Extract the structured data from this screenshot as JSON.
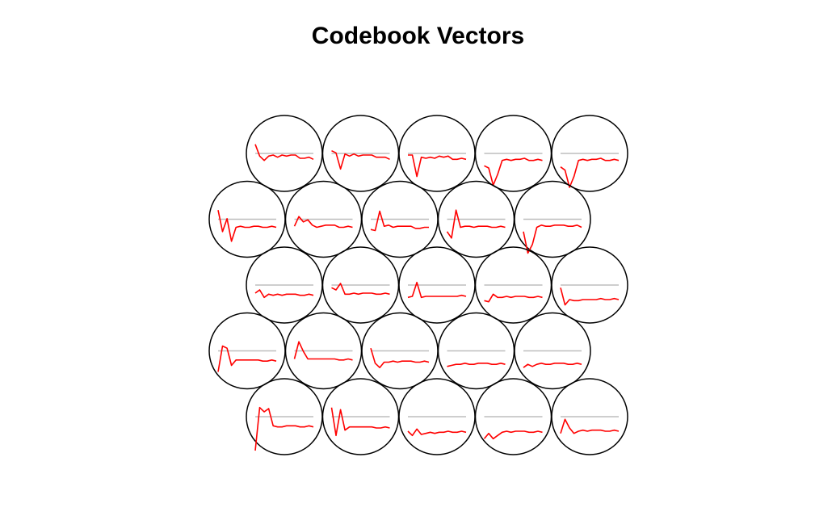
{
  "chart_data": {
    "type": "line",
    "title": "Codebook Vectors",
    "grid": {
      "rows": 5,
      "cols": 5,
      "topology": "hexagonal"
    },
    "num_variables": 14,
    "baseline_color": "#bebebe",
    "line_color": "#ff0000",
    "circle_color": "#000000",
    "units": [
      [
        [
          1.0,
          0.45,
          0.25,
          0.45,
          0.5,
          0.4,
          0.5,
          0.45,
          0.5,
          0.5,
          0.35,
          0.35,
          0.4,
          0.3
        ],
        [
          0.7,
          0.6,
          -0.15,
          0.55,
          0.45,
          0.55,
          0.45,
          0.5,
          0.5,
          0.5,
          0.4,
          0.4,
          0.4,
          0.3
        ],
        [
          0.5,
          0.5,
          -0.5,
          0.4,
          0.35,
          0.4,
          0.35,
          0.45,
          0.4,
          0.45,
          0.3,
          0.3,
          0.35,
          0.3
        ],
        [
          0.0,
          -0.1,
          -0.9,
          -0.4,
          0.25,
          0.3,
          0.25,
          0.3,
          0.3,
          0.35,
          0.25,
          0.25,
          0.3,
          0.25
        ],
        [
          -0.05,
          -0.2,
          -1.0,
          -0.5,
          0.25,
          0.3,
          0.25,
          0.3,
          0.3,
          0.35,
          0.25,
          0.25,
          0.3,
          0.25
        ]
      ],
      [
        [
          1.0,
          0.0,
          0.6,
          -0.45,
          0.2,
          0.25,
          0.2,
          0.2,
          0.25,
          0.25,
          0.2,
          0.2,
          0.25,
          0.2
        ],
        [
          0.25,
          0.7,
          0.45,
          0.55,
          0.3,
          0.2,
          0.25,
          0.3,
          0.3,
          0.3,
          0.2,
          0.2,
          0.25,
          0.2
        ],
        [
          0.1,
          0.05,
          0.95,
          0.25,
          0.3,
          0.2,
          0.25,
          0.25,
          0.25,
          0.25,
          0.15,
          0.15,
          0.2,
          0.2
        ],
        [
          0.0,
          -0.3,
          1.0,
          0.2,
          0.25,
          0.25,
          0.2,
          0.25,
          0.25,
          0.25,
          0.2,
          0.2,
          0.25,
          0.2
        ],
        [
          0.0,
          -1.0,
          -0.6,
          0.2,
          0.3,
          0.25,
          0.25,
          0.3,
          0.3,
          0.3,
          0.25,
          0.25,
          0.3,
          0.2
        ]
      ],
      [
        [
          0.2,
          0.35,
          0.0,
          0.15,
          0.1,
          0.15,
          0.1,
          0.15,
          0.15,
          0.15,
          0.1,
          0.1,
          0.15,
          0.1
        ],
        [
          0.45,
          0.35,
          0.65,
          0.15,
          0.15,
          0.2,
          0.15,
          0.2,
          0.2,
          0.2,
          0.15,
          0.15,
          0.2,
          0.15
        ],
        [
          0.0,
          0.05,
          0.7,
          0.0,
          0.05,
          0.05,
          0.05,
          0.05,
          0.05,
          0.05,
          0.05,
          0.05,
          0.1,
          0.05
        ],
        [
          -0.15,
          -0.2,
          0.15,
          0.0,
          0.0,
          0.05,
          0.0,
          0.05,
          0.05,
          0.05,
          0.0,
          0.0,
          0.05,
          0.0
        ],
        [
          0.45,
          -0.35,
          -0.1,
          -0.15,
          -0.15,
          -0.1,
          -0.1,
          -0.1,
          -0.1,
          -0.05,
          -0.1,
          -0.1,
          -0.05,
          -0.1
        ]
      ],
      [
        [
          -0.4,
          0.8,
          0.7,
          -0.1,
          0.15,
          0.15,
          0.15,
          0.15,
          0.15,
          0.15,
          0.1,
          0.1,
          0.15,
          0.1
        ],
        [
          0.2,
          1.0,
          0.55,
          0.2,
          0.2,
          0.2,
          0.2,
          0.2,
          0.2,
          0.2,
          0.15,
          0.15,
          0.2,
          0.15
        ],
        [
          0.7,
          0.0,
          -0.2,
          0.05,
          0.05,
          0.1,
          0.05,
          0.1,
          0.1,
          0.1,
          0.05,
          0.05,
          0.1,
          0.05
        ],
        [
          -0.15,
          -0.1,
          -0.05,
          -0.05,
          0.0,
          -0.05,
          -0.05,
          0.0,
          0.0,
          0.0,
          -0.05,
          -0.05,
          0.0,
          -0.05
        ],
        [
          -0.2,
          -0.05,
          -0.15,
          -0.05,
          0.0,
          -0.05,
          -0.05,
          0.0,
          0.0,
          0.0,
          -0.05,
          -0.05,
          0.0,
          -0.05
        ]
      ],
      [
        [
          -1.0,
          1.0,
          0.8,
          0.95,
          0.15,
          0.1,
          0.1,
          0.15,
          0.15,
          0.15,
          0.1,
          0.1,
          0.15,
          0.1
        ],
        [
          1.0,
          -0.3,
          0.9,
          -0.05,
          0.1,
          0.1,
          0.1,
          0.1,
          0.1,
          0.1,
          0.05,
          0.05,
          0.1,
          0.05
        ],
        [
          -0.1,
          -0.3,
          0.0,
          -0.25,
          -0.2,
          -0.15,
          -0.2,
          -0.15,
          -0.15,
          -0.1,
          -0.15,
          -0.15,
          -0.1,
          -0.15
        ],
        [
          -0.45,
          -0.2,
          -0.45,
          -0.3,
          -0.15,
          -0.1,
          -0.15,
          -0.1,
          -0.1,
          -0.1,
          -0.15,
          -0.15,
          -0.1,
          -0.15
        ],
        [
          -0.2,
          0.45,
          0.05,
          -0.2,
          -0.1,
          -0.05,
          -0.1,
          -0.05,
          -0.05,
          -0.05,
          -0.1,
          -0.1,
          -0.05,
          -0.1
        ]
      ]
    ]
  }
}
